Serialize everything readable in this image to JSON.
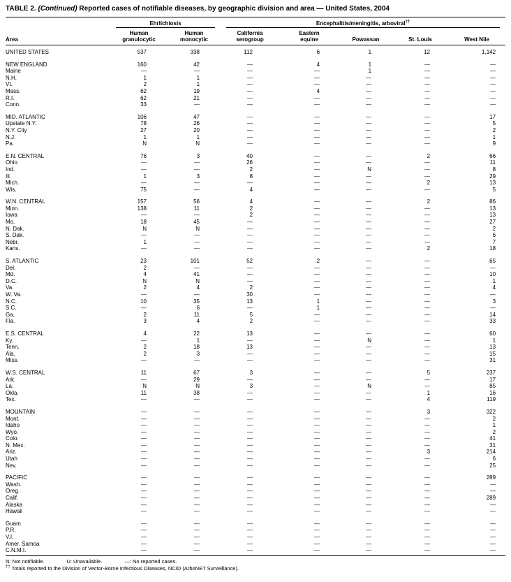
{
  "title": {
    "label": "TABLE 2.",
    "continued": "(Continued)",
    "rest": "Reported cases of notifiable diseases, by geographic division and area — United States, 2004"
  },
  "header": {
    "area": "Area",
    "group1": "Ehrlichiosis",
    "group2": "Encephalitis/meningitis, arboviral",
    "group2_sup": "††",
    "columns": [
      "Human\ngranulocytic",
      "Human\nmonocytic",
      "California\nserogroup",
      "Eastern\nequine",
      "Powassan",
      "St. Louis",
      "West Nile"
    ]
  },
  "table": {
    "groups": [
      {
        "rows": [
          {
            "area": "UNITED STATES",
            "values": [
              "537",
              "338",
              "112",
              "6",
              "1",
              "12",
              "1,142"
            ]
          }
        ]
      },
      {
        "rows": [
          {
            "area": "NEW ENGLAND",
            "values": [
              "160",
              "42",
              "—",
              "4",
              "1",
              "—",
              "—"
            ]
          },
          {
            "area": "Maine",
            "values": [
              "—",
              "—",
              "—",
              "—",
              "1",
              "—",
              "—"
            ]
          },
          {
            "area": "N.H.",
            "values": [
              "1",
              "1",
              "—",
              "—",
              "—",
              "—",
              "—"
            ]
          },
          {
            "area": "Vt.",
            "values": [
              "2",
              "1",
              "—",
              "—",
              "—",
              "—",
              "—"
            ]
          },
          {
            "area": "Mass.",
            "values": [
              "62",
              "19",
              "—",
              "4",
              "—",
              "—",
              "—"
            ]
          },
          {
            "area": "R.I.",
            "values": [
              "62",
              "21",
              "—",
              "—",
              "—",
              "—",
              "—"
            ]
          },
          {
            "area": "Conn.",
            "values": [
              "33",
              "—",
              "—",
              "—",
              "—",
              "—",
              "—"
            ]
          }
        ]
      },
      {
        "rows": [
          {
            "area": "MID. ATLANTIC",
            "values": [
              "106",
              "47",
              "—",
              "—",
              "—",
              "—",
              "17"
            ]
          },
          {
            "area": "Upstate N.Y.",
            "values": [
              "78",
              "26",
              "—",
              "—",
              "—",
              "—",
              "5"
            ]
          },
          {
            "area": "N.Y. City",
            "values": [
              "27",
              "20",
              "—",
              "—",
              "—",
              "—",
              "2"
            ]
          },
          {
            "area": "N.J.",
            "values": [
              "1",
              "1",
              "—",
              "—",
              "—",
              "—",
              "1"
            ]
          },
          {
            "area": "Pa.",
            "values": [
              "N",
              "N",
              "—",
              "—",
              "—",
              "—",
              "9"
            ]
          }
        ]
      },
      {
        "rows": [
          {
            "area": "E.N. CENTRAL",
            "values": [
              "76",
              "3",
              "40",
              "—",
              "—",
              "2",
              "66"
            ]
          },
          {
            "area": "Ohio",
            "values": [
              "—",
              "—",
              "26",
              "—",
              "—",
              "—",
              "11"
            ]
          },
          {
            "area": "Ind.",
            "values": [
              "—",
              "—",
              "2",
              "—",
              "N",
              "—",
              "8"
            ]
          },
          {
            "area": "Ill.",
            "values": [
              "1",
              "3",
              "8",
              "—",
              "—",
              "—",
              "29"
            ]
          },
          {
            "area": "Mich.",
            "values": [
              "—",
              "—",
              "—",
              "—",
              "—",
              "2",
              "13"
            ]
          },
          {
            "area": "Wis.",
            "values": [
              "75",
              "—",
              "4",
              "—",
              "—",
              "—",
              "5"
            ]
          }
        ]
      },
      {
        "rows": [
          {
            "area": "W.N. CENTRAL",
            "values": [
              "157",
              "56",
              "4",
              "—",
              "—",
              "2",
              "86"
            ]
          },
          {
            "area": "Minn.",
            "values": [
              "138",
              "11",
              "2",
              "—",
              "—",
              "—",
              "13"
            ]
          },
          {
            "area": "Iowa",
            "values": [
              "—",
              "—",
              "2",
              "—",
              "—",
              "—",
              "13"
            ]
          },
          {
            "area": "Mo.",
            "values": [
              "18",
              "45",
              "—",
              "—",
              "—",
              "—",
              "27"
            ]
          },
          {
            "area": "N. Dak.",
            "values": [
              "N",
              "N",
              "—",
              "—",
              "—",
              "—",
              "2"
            ]
          },
          {
            "area": "S. Dak.",
            "values": [
              "—",
              "—",
              "—",
              "—",
              "—",
              "—",
              "6"
            ]
          },
          {
            "area": "Nebr.",
            "values": [
              "1",
              "—",
              "—",
              "—",
              "—",
              "—",
              "7"
            ]
          },
          {
            "area": "Kans.",
            "values": [
              "—",
              "—",
              "—",
              "—",
              "—",
              "2",
              "18"
            ]
          }
        ]
      },
      {
        "rows": [
          {
            "area": "S. ATLANTIC",
            "values": [
              "23",
              "101",
              "52",
              "2",
              "—",
              "—",
              "65"
            ]
          },
          {
            "area": "Del.",
            "values": [
              "2",
              "—",
              "—",
              "—",
              "—",
              "—",
              "—"
            ]
          },
          {
            "area": "Md.",
            "values": [
              "4",
              "41",
              "—",
              "—",
              "—",
              "—",
              "10"
            ]
          },
          {
            "area": "D.C.",
            "values": [
              "N",
              "N",
              "—",
              "—",
              "—",
              "—",
              "1"
            ]
          },
          {
            "area": "Va.",
            "values": [
              "2",
              "4",
              "2",
              "—",
              "—",
              "—",
              "4"
            ]
          },
          {
            "area": "W. Va.",
            "values": [
              "—",
              "—",
              "30",
              "—",
              "—",
              "—",
              "—"
            ]
          },
          {
            "area": "N.C.",
            "values": [
              "10",
              "35",
              "13",
              "1",
              "—",
              "—",
              "3"
            ]
          },
          {
            "area": "S.C.",
            "values": [
              "—",
              "6",
              "—",
              "1",
              "—",
              "—",
              "—"
            ]
          },
          {
            "area": "Ga.",
            "values": [
              "2",
              "11",
              "5",
              "—",
              "—",
              "—",
              "14"
            ]
          },
          {
            "area": "Fla.",
            "values": [
              "3",
              "4",
              "2",
              "—",
              "—",
              "—",
              "33"
            ]
          }
        ]
      },
      {
        "rows": [
          {
            "area": "E.S. CENTRAL",
            "values": [
              "4",
              "22",
              "13",
              "—",
              "—",
              "—",
              "60"
            ]
          },
          {
            "area": "Ky.",
            "values": [
              "—",
              "1",
              "—",
              "—",
              "N",
              "—",
              "1"
            ]
          },
          {
            "area": "Tenn.",
            "values": [
              "2",
              "18",
              "13",
              "—",
              "—",
              "—",
              "13"
            ]
          },
          {
            "area": "Ala.",
            "values": [
              "2",
              "3",
              "—",
              "—",
              "—",
              "—",
              "15"
            ]
          },
          {
            "area": "Miss.",
            "values": [
              "—",
              "—",
              "—",
              "—",
              "—",
              "—",
              "31"
            ]
          }
        ]
      },
      {
        "rows": [
          {
            "area": "W.S. CENTRAL",
            "values": [
              "11",
              "67",
              "3",
              "—",
              "—",
              "5",
              "237"
            ]
          },
          {
            "area": "Ark.",
            "values": [
              "—",
              "29",
              "—",
              "—",
              "—",
              "—",
              "17"
            ]
          },
          {
            "area": "La.",
            "values": [
              "N",
              "N",
              "3",
              "—",
              "N",
              "—",
              "85"
            ]
          },
          {
            "area": "Okla.",
            "values": [
              "11",
              "38",
              "—",
              "—",
              "—",
              "1",
              "16"
            ]
          },
          {
            "area": "Tex.",
            "values": [
              "—",
              "—",
              "—",
              "—",
              "—",
              "4",
              "119"
            ]
          }
        ]
      },
      {
        "rows": [
          {
            "area": "MOUNTAIN",
            "values": [
              "—",
              "—",
              "—",
              "—",
              "—",
              "3",
              "322"
            ]
          },
          {
            "area": "Mont.",
            "values": [
              "—",
              "—",
              "—",
              "—",
              "—",
              "—",
              "2"
            ]
          },
          {
            "area": "Idaho",
            "values": [
              "—",
              "—",
              "—",
              "—",
              "—",
              "—",
              "1"
            ]
          },
          {
            "area": "Wyo.",
            "values": [
              "—",
              "—",
              "—",
              "—",
              "—",
              "—",
              "2"
            ]
          },
          {
            "area": "Colo.",
            "values": [
              "—",
              "—",
              "—",
              "—",
              "—",
              "—",
              "41"
            ]
          },
          {
            "area": "N. Mex.",
            "values": [
              "—",
              "—",
              "—",
              "—",
              "—",
              "—",
              "31"
            ]
          },
          {
            "area": "Ariz.",
            "values": [
              "—",
              "—",
              "—",
              "—",
              "—",
              "3",
              "214"
            ]
          },
          {
            "area": "Utah",
            "values": [
              "—",
              "—",
              "—",
              "—",
              "—",
              "—",
              "6"
            ]
          },
          {
            "area": "Nev.",
            "values": [
              "—",
              "—",
              "—",
              "—",
              "—",
              "—",
              "25"
            ]
          }
        ]
      },
      {
        "rows": [
          {
            "area": "PACIFIC",
            "values": [
              "—",
              "—",
              "—",
              "—",
              "—",
              "—",
              "289"
            ]
          },
          {
            "area": "Wash.",
            "values": [
              "—",
              "—",
              "—",
              "—",
              "—",
              "—",
              "—"
            ]
          },
          {
            "area": "Oreg.",
            "values": [
              "—",
              "—",
              "—",
              "—",
              "—",
              "—",
              "—"
            ]
          },
          {
            "area": "Calif.",
            "values": [
              "—",
              "—",
              "—",
              "—",
              "—",
              "—",
              "289"
            ]
          },
          {
            "area": "Alaska",
            "values": [
              "—",
              "—",
              "—",
              "—",
              "—",
              "—",
              "—"
            ]
          },
          {
            "area": "Hawaii",
            "values": [
              "—",
              "—",
              "—",
              "—",
              "—",
              "—",
              "—"
            ]
          }
        ]
      },
      {
        "rows": [
          {
            "area": "Guam",
            "values": [
              "—",
              "—",
              "—",
              "—",
              "—",
              "—",
              "—"
            ]
          },
          {
            "area": "P.R.",
            "values": [
              "—",
              "—",
              "—",
              "—",
              "—",
              "—",
              "—"
            ]
          },
          {
            "area": "V.I.",
            "values": [
              "—",
              "—",
              "—",
              "—",
              "—",
              "—",
              "—"
            ]
          },
          {
            "area": "Amer. Samoa",
            "values": [
              "—",
              "—",
              "—",
              "—",
              "—",
              "—",
              "—"
            ]
          },
          {
            "area": "C.N.M.I.",
            "values": [
              "—",
              "—",
              "—",
              "—",
              "—",
              "—",
              "—"
            ]
          }
        ]
      }
    ]
  },
  "footnotes": {
    "line1": [
      "N: Not notifiable.",
      "U: Unavailable.",
      "—: No reported cases."
    ],
    "line2_sup": "††",
    "line2": "Totals reported to the Division of Vector-Borne Infectious Diseases, NCID (ArboNET Surveillance)."
  }
}
